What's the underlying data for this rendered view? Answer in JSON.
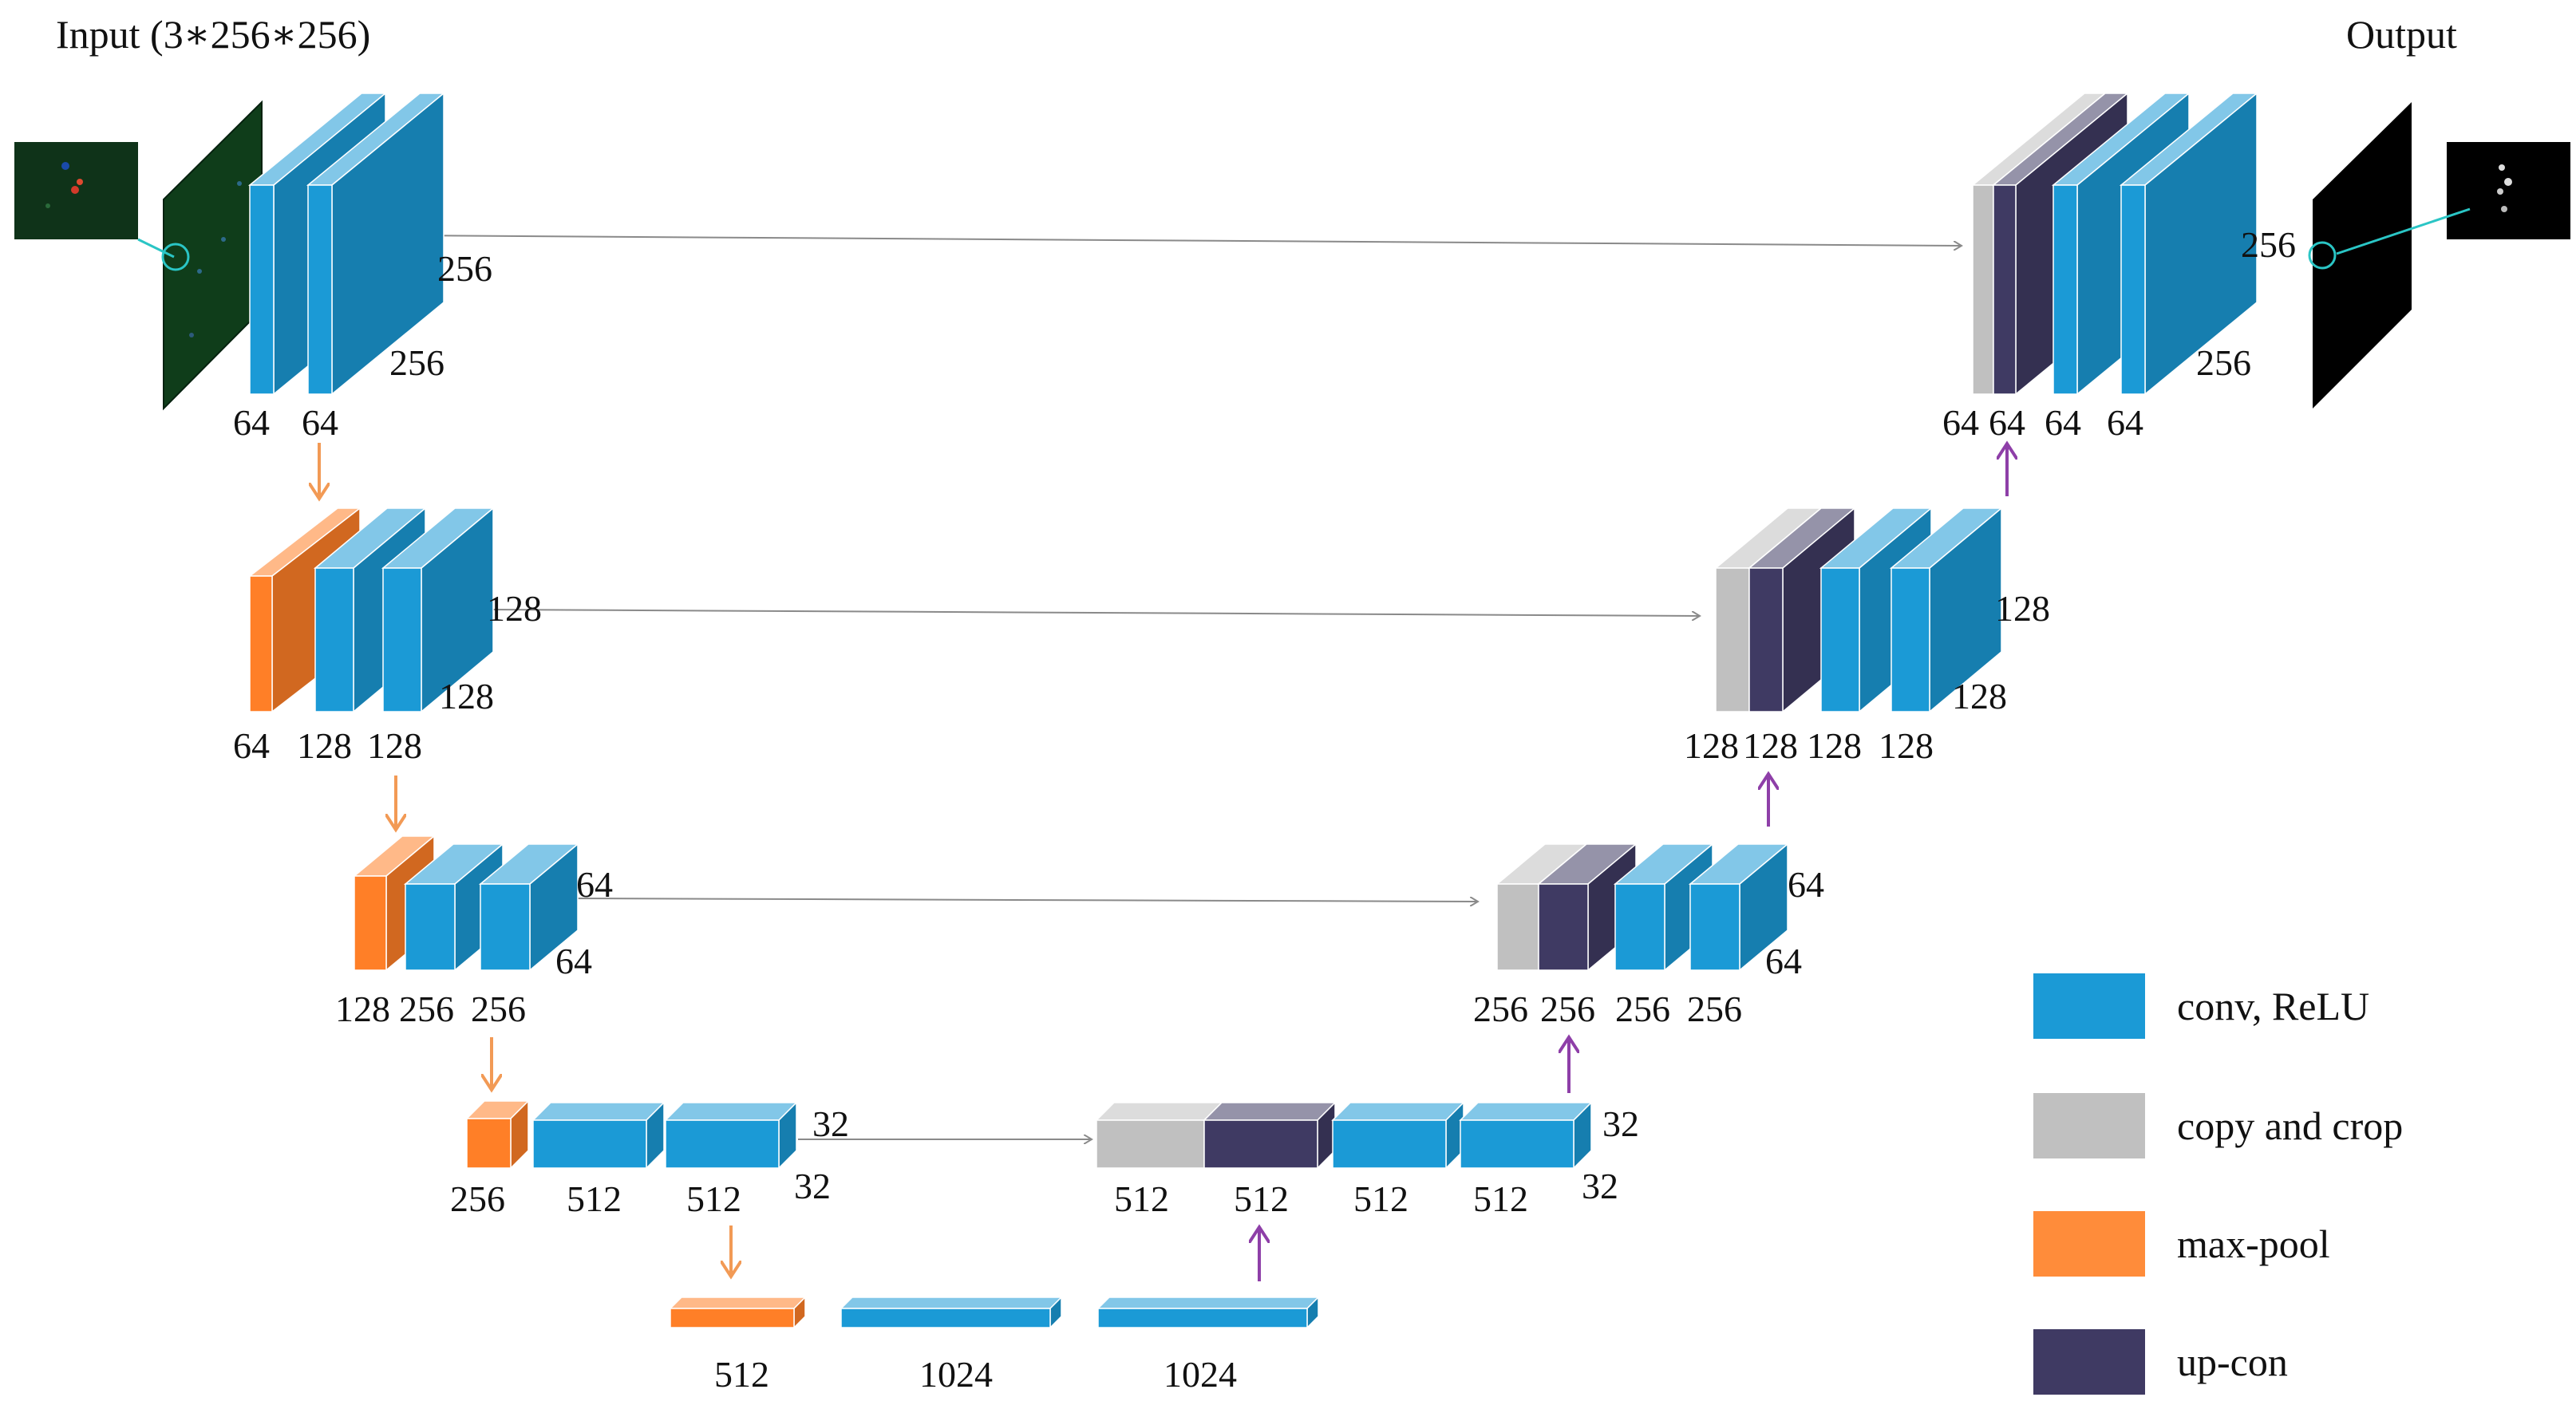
{
  "title_input": "Input (3∗256∗256)",
  "title_output": "Output",
  "colors": {
    "conv": "#1b9ad6",
    "copy": "#c0c0c0",
    "pool": "#ff7f27",
    "upcon": "#3f3a63",
    "arrow_pool": "#f29a55",
    "arrow_up": "#8e3fa8",
    "skip": "#8a8a8a",
    "connector": "#2ac5c5"
  },
  "legend": {
    "conv": "conv, ReLU",
    "copy": "copy and crop",
    "pool": "max-pool",
    "upcon": "up-con"
  },
  "labels": {
    "l1_ch1": "64",
    "l1_ch2": "64",
    "l1_h": "256",
    "l1_w": "256",
    "l2_ch1": "64",
    "l2_ch2": "128",
    "l2_ch3": "128",
    "l2_h": "128",
    "l2_w": "128",
    "l3_ch1": "128",
    "l3_ch2": "256",
    "l3_ch3": "256",
    "l3_h": "64",
    "l3_w": "64",
    "l4_ch1": "256",
    "l4_ch2": "512",
    "l4_ch3": "512",
    "l4_h": "32",
    "l4_w": "32",
    "b_ch1": "512",
    "b_ch2": "1024",
    "b_ch3": "1024",
    "d4_ch1": "512",
    "d4_ch2": "512",
    "d4_ch3": "512",
    "d4_ch4": "512",
    "d4_h": "32",
    "d4_w": "32",
    "d3_ch1": "256",
    "d3_ch2": "256",
    "d3_ch3": "256",
    "d3_ch4": "256",
    "d3_h": "64",
    "d3_w": "64",
    "d2_ch1": "128",
    "d2_ch2": "128",
    "d2_ch3": "128",
    "d2_ch4": "128",
    "d2_h": "128",
    "d2_w": "128",
    "d1_ch1": "64",
    "d1_ch2": "64",
    "d1_ch3": "64",
    "d1_ch4": "64",
    "d1_h": "256",
    "d1_w": "256"
  }
}
